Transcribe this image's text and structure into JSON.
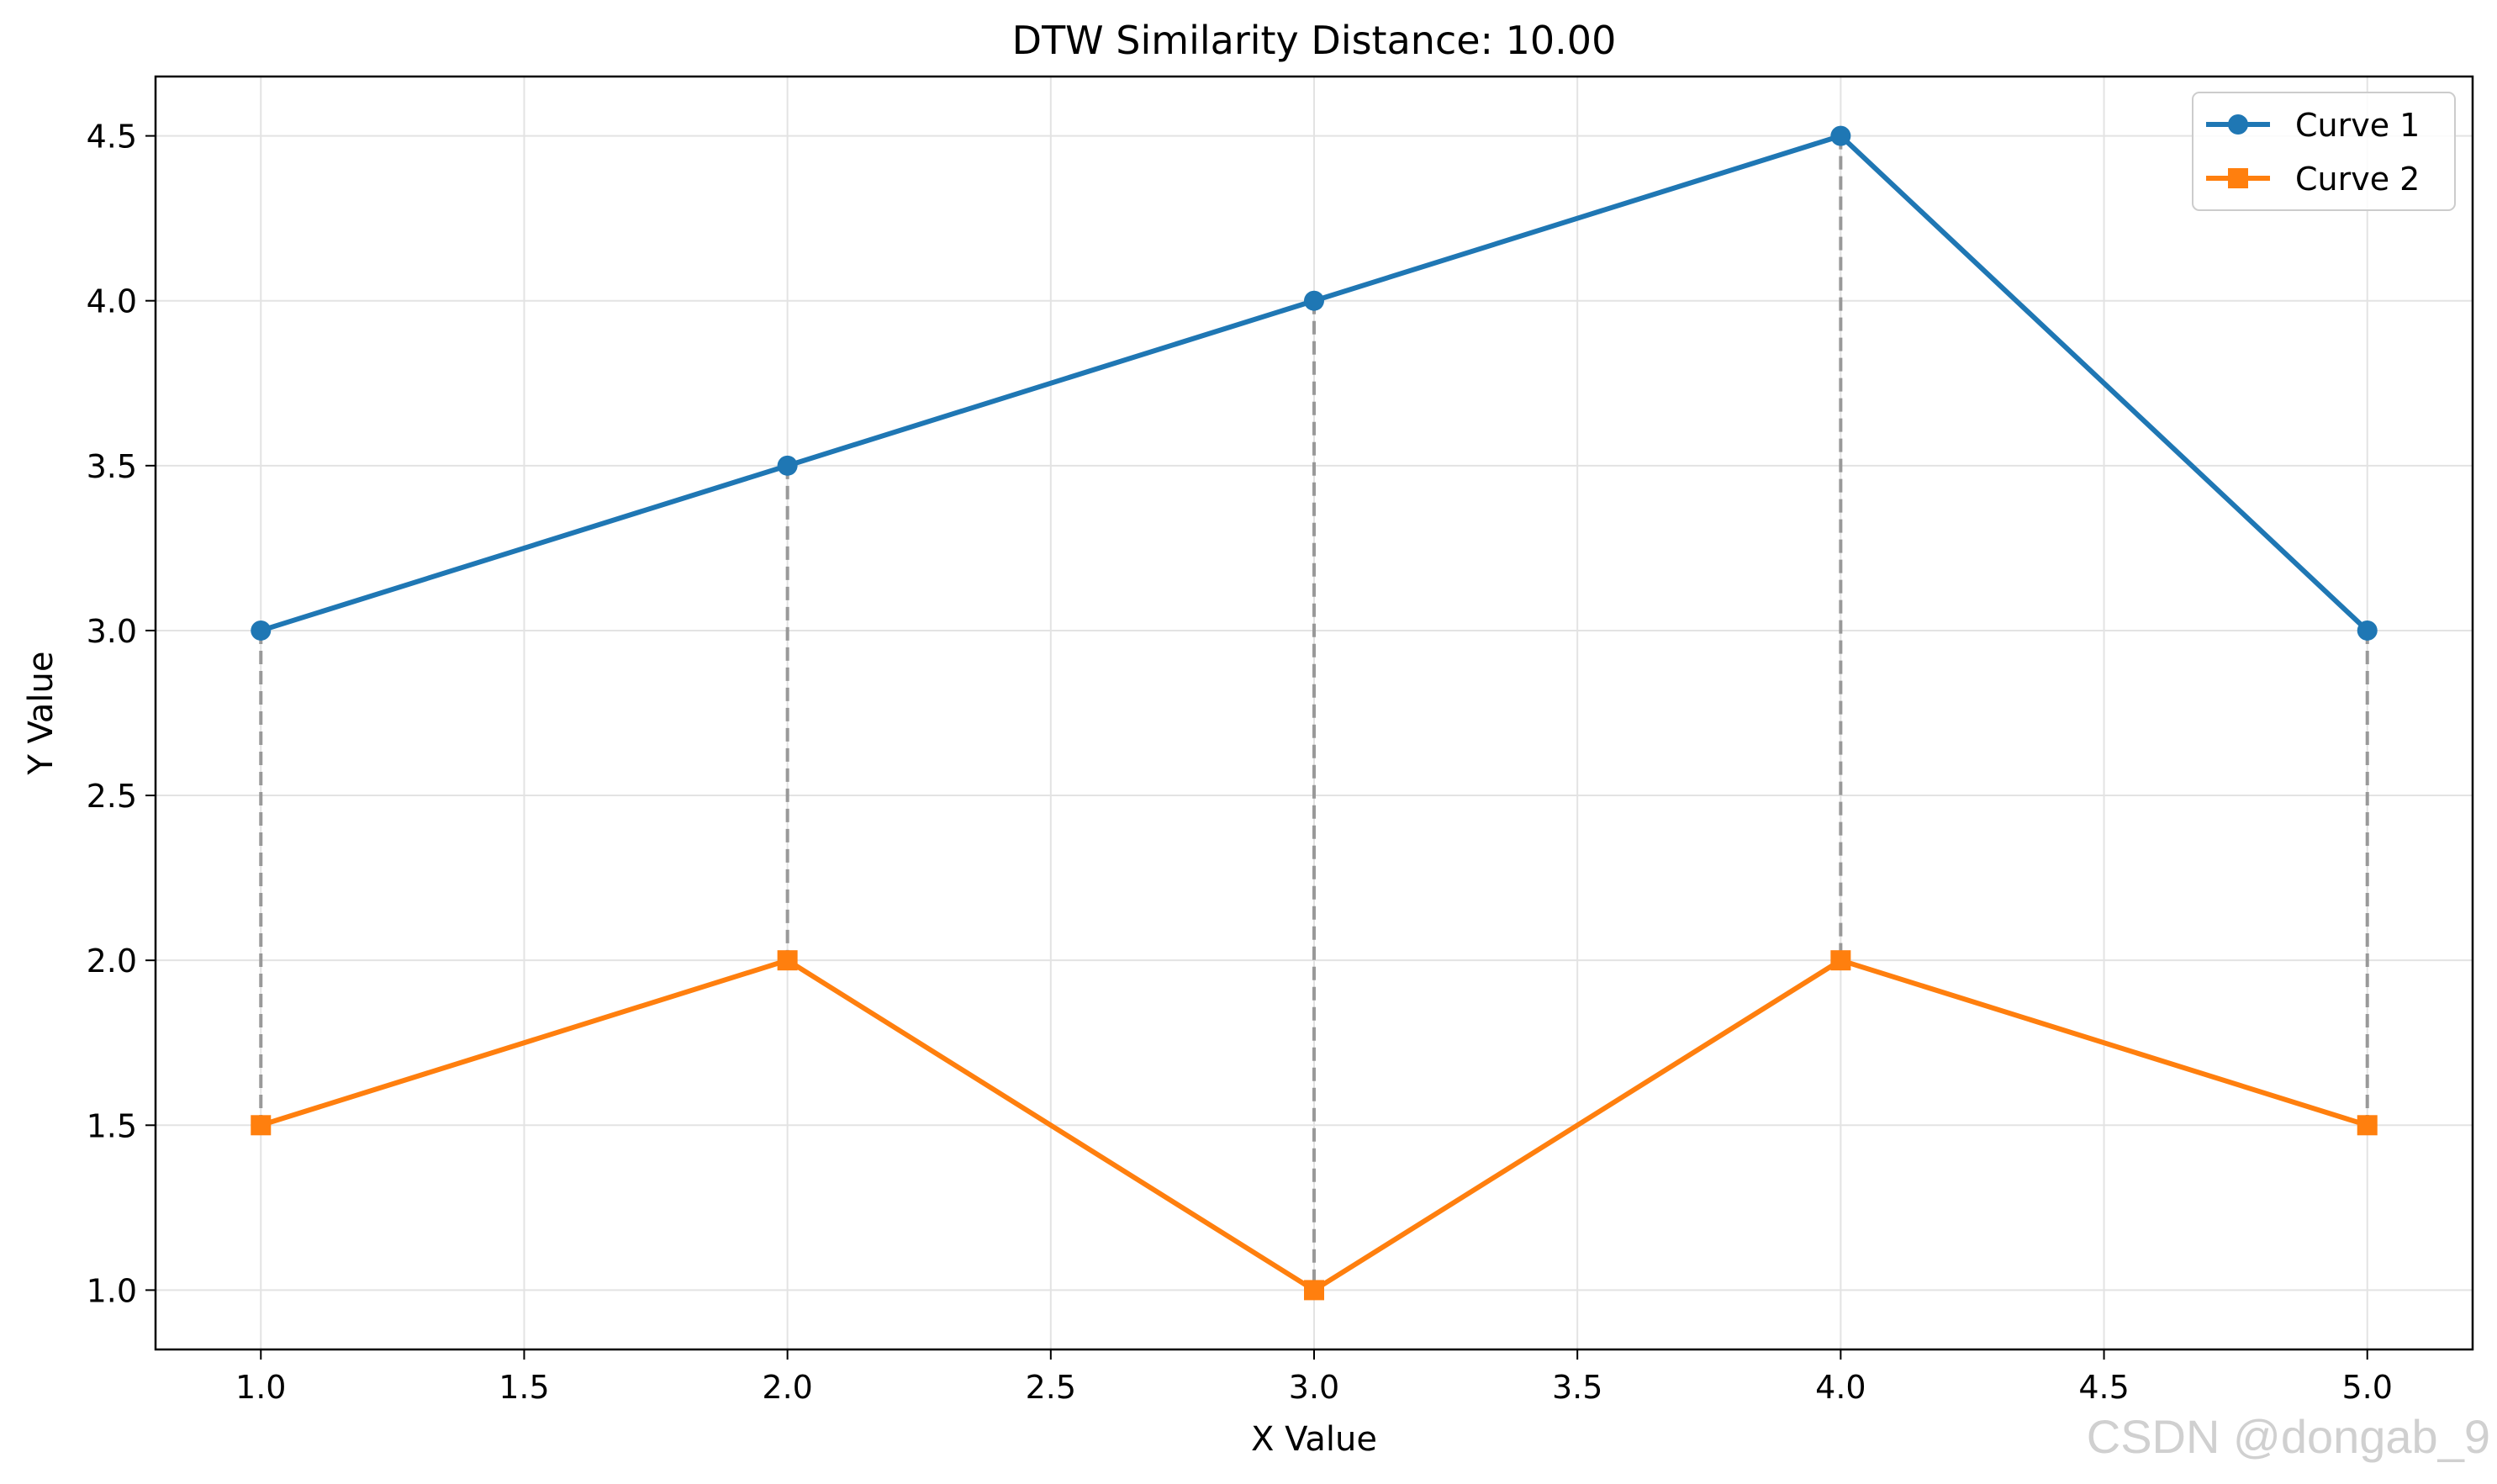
{
  "chart_data": {
    "type": "line",
    "title": "DTW Similarity Distance: 10.00",
    "xlabel": "X Value",
    "ylabel": "Y Value",
    "xlim": [
      0.8,
      5.2
    ],
    "ylim": [
      0.82,
      4.68
    ],
    "x_ticks": [
      "1.0",
      "1.5",
      "2.0",
      "2.5",
      "3.0",
      "3.5",
      "4.0",
      "4.5",
      "5.0"
    ],
    "y_ticks": [
      "1.0",
      "1.5",
      "2.0",
      "2.5",
      "3.0",
      "3.5",
      "4.0",
      "4.5"
    ],
    "grid": true,
    "legend_position": "top-right",
    "series": [
      {
        "name": "Curve 1",
        "color": "#1f77b4",
        "marker": "circle",
        "x": [
          1,
          2,
          3,
          4,
          5
        ],
        "y": [
          3.0,
          3.5,
          4.0,
          4.5,
          3.0
        ]
      },
      {
        "name": "Curve 2",
        "color": "#ff7f0e",
        "marker": "square",
        "x": [
          1,
          2,
          3,
          4,
          5
        ],
        "y": [
          1.5,
          2.0,
          1.0,
          2.0,
          1.5
        ]
      }
    ],
    "dtw_connections": [
      {
        "from": [
          1,
          3.0
        ],
        "to": [
          1,
          1.5
        ]
      },
      {
        "from": [
          2,
          3.5
        ],
        "to": [
          2,
          2.0
        ]
      },
      {
        "from": [
          3,
          4.0
        ],
        "to": [
          3,
          1.0
        ]
      },
      {
        "from": [
          4,
          4.5
        ],
        "to": [
          4,
          2.0
        ]
      },
      {
        "from": [
          5,
          3.0
        ],
        "to": [
          5,
          1.5
        ]
      }
    ],
    "connection_color": "#999999"
  },
  "watermark": "CSDN @dongab_9"
}
